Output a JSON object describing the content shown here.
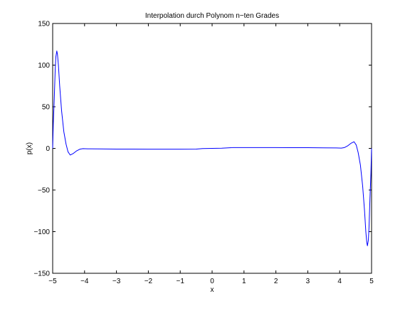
{
  "chart_data": {
    "type": "line",
    "title": "Interpolation durch Polynom n−ten Grades",
    "xlabel": "x",
    "ylabel": "p(x)",
    "xlim": [
      -5,
      5
    ],
    "ylim": [
      -150,
      150
    ],
    "xticks": [
      -5,
      -4,
      -3,
      -2,
      -1,
      0,
      1,
      2,
      3,
      4,
      5
    ],
    "xtick_labels": [
      "−5",
      "−4",
      "−3",
      "−2",
      "−1",
      "0",
      "1",
      "2",
      "3",
      "4",
      "5"
    ],
    "yticks": [
      -150,
      -100,
      -50,
      0,
      50,
      100,
      150
    ],
    "ytick_labels": [
      "−150",
      "−100",
      "−50",
      "0",
      "50",
      "100",
      "150"
    ],
    "grid": false,
    "series": [
      {
        "color": "#0000ff",
        "x": [
          -5.0,
          -4.98,
          -4.95,
          -4.92,
          -4.9,
          -4.87,
          -4.85,
          -4.82,
          -4.78,
          -4.72,
          -4.65,
          -4.58,
          -4.52,
          -4.45,
          -4.35,
          -4.25,
          -4.15,
          -4.05,
          -3.9,
          -3.5,
          -3.0,
          -2.5,
          -2.0,
          -1.5,
          -1.0,
          -0.5,
          -0.3,
          0.0,
          0.3,
          0.6,
          0.65,
          1.0,
          1.5,
          2.0,
          2.5,
          3.0,
          3.5,
          3.9,
          4.05,
          4.15,
          4.25,
          4.35,
          4.45,
          4.52,
          4.58,
          4.65,
          4.72,
          4.78,
          4.82,
          4.85,
          4.87,
          4.9,
          4.92,
          4.95,
          4.98,
          5.0
        ],
        "y": [
          0,
          30,
          60,
          95,
          110,
          117,
          113,
          100,
          75,
          45,
          20,
          5,
          -4,
          -8,
          -6,
          -3,
          -1,
          -0.3,
          -0.5,
          -0.6,
          -0.8,
          -0.9,
          -1.0,
          -1.0,
          -1.0,
          -0.9,
          -0.2,
          0,
          0.2,
          0.8,
          1.0,
          1.0,
          1.0,
          1.0,
          0.9,
          0.8,
          0.6,
          0.5,
          0.3,
          1,
          3,
          6,
          8,
          4,
          -5,
          -20,
          -45,
          -75,
          -100,
          -113,
          -117,
          -110,
          -95,
          -60,
          -30,
          0
        ]
      }
    ]
  }
}
